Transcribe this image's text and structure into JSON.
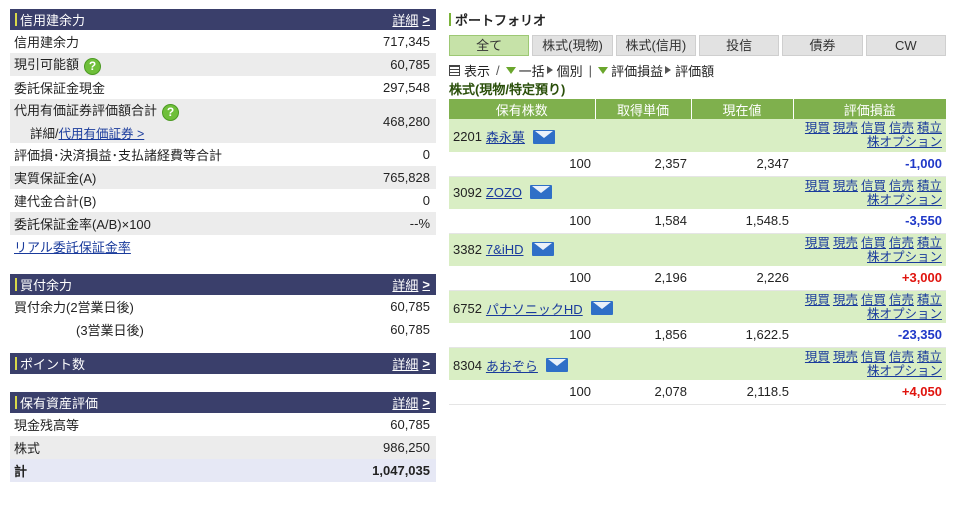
{
  "credit": {
    "title": "信用建余力",
    "detail": "詳細",
    "rows": [
      {
        "label": "信用建余力",
        "value": "717,345"
      },
      {
        "label": "現引可能額",
        "value": "60,785"
      },
      {
        "label": "委託保証金現金",
        "value": "297,548"
      },
      {
        "label": "代用有価証券評価額合計",
        "sub_prefix": "詳細/",
        "sub_link": "代用有価証券",
        "value": "468,280"
      },
      {
        "label": "評価損･決済損益･支払諸経費等合計",
        "value": "0"
      },
      {
        "label": "実質保証金(A)",
        "value": "765,828"
      },
      {
        "label": "建代金合計(B)",
        "value": "0"
      },
      {
        "label": "委託保証金率(A/B)×100",
        "value": "--%"
      }
    ],
    "link": "リアル委託保証金率"
  },
  "buying": {
    "title": "買付余力",
    "detail": "詳細",
    "rows": [
      {
        "label": "買付余力(2営業日後)",
        "value": "60,785"
      },
      {
        "label": "(3営業日後)",
        "value": "60,785"
      }
    ]
  },
  "points": {
    "title": "ポイント数",
    "detail": "詳細"
  },
  "assets": {
    "title": "保有資産評価",
    "detail": "詳細",
    "rows": [
      {
        "label": "現金残高等",
        "value": "60,785"
      },
      {
        "label": "株式",
        "value": "986,250"
      },
      {
        "label": "計",
        "value": "1,047,035"
      }
    ]
  },
  "portfolio": {
    "title": "ポートフォリオ",
    "tabs": [
      "全て",
      "株式(現物)",
      "株式(信用)",
      "投信",
      "債券",
      "CW"
    ],
    "toolbar": {
      "display": "表示",
      "bulk": "一括",
      "individual": "個別",
      "pl": "評価損益",
      "value": "評価額"
    },
    "subtitle": "株式(現物/特定預り)",
    "headers": [
      "保有株数",
      "取得単価",
      "現在値",
      "評価損益"
    ],
    "actions": [
      "現買",
      "現売",
      "信買",
      "信売",
      "積立"
    ],
    "option": "株オプション",
    "stocks": [
      {
        "code": "2201",
        "name": "森永菓",
        "qty": "100",
        "cost": "2,357",
        "price": "2,347",
        "pl": "-1,000"
      },
      {
        "code": "3092",
        "name": "ZOZO",
        "qty": "100",
        "cost": "1,584",
        "price": "1,548.5",
        "pl": "-3,550"
      },
      {
        "code": "3382",
        "name": "7&iHD",
        "qty": "100",
        "cost": "2,196",
        "price": "2,226",
        "pl": "+3,000"
      },
      {
        "code": "6752",
        "name": "パナソニックHD",
        "qty": "100",
        "cost": "1,856",
        "price": "1,622.5",
        "pl": "-23,350"
      },
      {
        "code": "8304",
        "name": "あおぞら",
        "qty": "100",
        "cost": "2,078",
        "price": "2,118.5",
        "pl": "+4,050"
      }
    ]
  },
  "colors": {
    "header_bg": "#3a3f6b",
    "table_header": "#7fb04d",
    "row_green": "#d9eec4",
    "neg": "#1f38c8",
    "pos": "#e0140e"
  }
}
